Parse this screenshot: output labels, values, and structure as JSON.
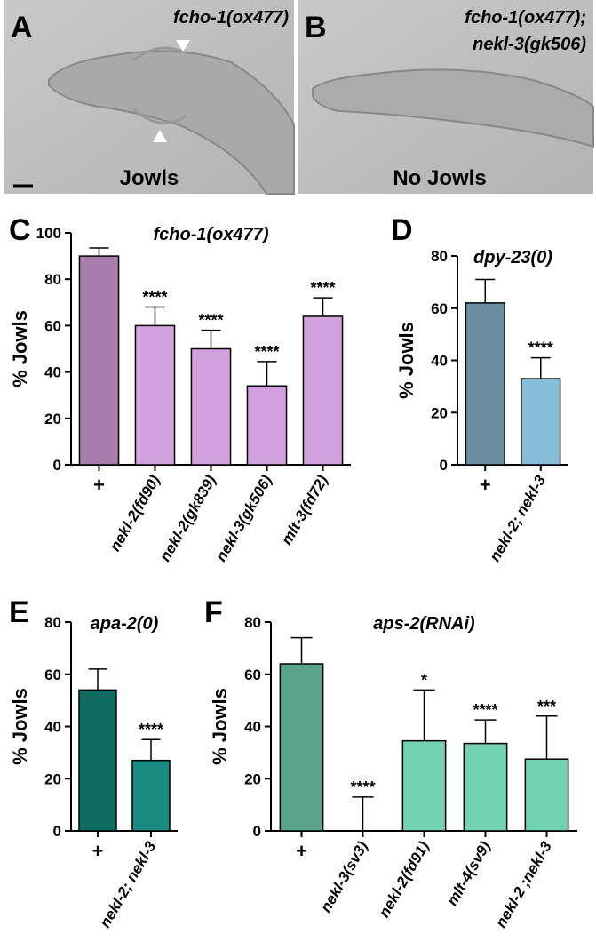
{
  "images": [
    {
      "panel": "A",
      "title": "fcho-1(ox477)",
      "caption": "Jowls"
    },
    {
      "panel": "B",
      "title": "fcho-1(ox477);",
      "title2": "nekl-3(gk506)",
      "caption": "No Jowls"
    }
  ],
  "chart_data": [
    {
      "type": "bar",
      "panel": "C",
      "title": "fcho-1(ox477)",
      "y_label": "% Jowls",
      "categories": [
        "+",
        "nekl-2(fd90)",
        "nekl-2(gk839)",
        "nekl-3(gk506)",
        "mlt-3(fd72)"
      ],
      "values": [
        90,
        60,
        50,
        34,
        64
      ],
      "errors": [
        3.5,
        8,
        8,
        10.5,
        8
      ],
      "annotations": [
        null,
        "****",
        "****",
        "****",
        "****"
      ],
      "colors": [
        "#a97cae",
        "#d3a0df",
        "#d3a0df",
        "#d3a0df",
        "#d3a0df"
      ],
      "ylim": [
        0,
        100
      ],
      "yticks": [
        0,
        20,
        40,
        60,
        80,
        100
      ]
    },
    {
      "type": "bar",
      "panel": "D",
      "title": "dpy-23(0)",
      "y_label": "% Jowls",
      "categories": [
        "+",
        "nekl-2; nekl-3"
      ],
      "values": [
        62,
        33
      ],
      "errors": [
        9,
        8
      ],
      "annotations": [
        null,
        "****"
      ],
      "colors": [
        "#6a8da2",
        "#86bdd8"
      ],
      "ylim": [
        0,
        80
      ],
      "yticks": [
        0,
        20,
        40,
        60,
        80
      ]
    },
    {
      "type": "bar",
      "panel": "E",
      "title": "apa-2(0)",
      "y_label": "% Jowls",
      "categories": [
        "+",
        "nekl-2; nekl-3"
      ],
      "values": [
        54,
        27
      ],
      "errors": [
        8,
        8
      ],
      "annotations": [
        null,
        "****"
      ],
      "colors": [
        "#0d6b60",
        "#1b8a82"
      ],
      "ylim": [
        0,
        80
      ],
      "yticks": [
        0,
        20,
        40,
        60,
        80
      ]
    },
    {
      "type": "bar",
      "panel": "F",
      "title": "aps-2(RNAi)",
      "y_label": "% Jowls",
      "categories": [
        "+",
        "nekl-3(sv3)",
        "nekl-2(fd91)",
        "mlt-4(sv9)",
        "nekl-2 ;nekl-3"
      ],
      "values": [
        64,
        0,
        34.5,
        33.5,
        27.5
      ],
      "errors": [
        10,
        13,
        19.5,
        9,
        16.5
      ],
      "annotations": [
        null,
        "****",
        "*",
        "****",
        "***"
      ],
      "colors": [
        "#5aa58a",
        "#72d2b1",
        "#72d2b1",
        "#72d2b1",
        "#72d2b1"
      ],
      "ylim": [
        0,
        80
      ],
      "yticks": [
        0,
        20,
        40,
        60,
        80
      ]
    }
  ]
}
